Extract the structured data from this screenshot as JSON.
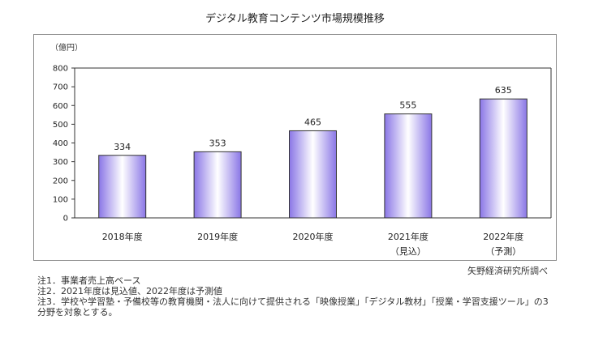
{
  "chart_data": {
    "type": "bar",
    "title": "デジタル教育コンテンツ市場規模推移",
    "unit_label": "（億円）",
    "categories": [
      [
        "2018年度"
      ],
      [
        "2019年度"
      ],
      [
        "2020年度"
      ],
      [
        "2021年度",
        "（見込）"
      ],
      [
        "2022年度",
        "（予測）"
      ]
    ],
    "values": [
      334,
      353,
      465,
      555,
      635
    ],
    "ylim": [
      0,
      800
    ],
    "yticks": [
      0,
      100,
      200,
      300,
      400,
      500,
      600,
      700,
      800
    ],
    "grid": false,
    "bar_gradient": [
      "#8a76e6",
      "#ffffff",
      "#8a76e6"
    ],
    "bar_outline": "#333333"
  },
  "source": "矢野経済研究所調べ",
  "notes": [
    "注1．事業者売上高ベース",
    "注2．2021年度は見込値、2022年度は予測値",
    "注3．学校や学習塾・予備校等の教育機関・法人に向けて提供される「映像授業」「デジタル教材」「授業・学習支援ツール」の3分野を対象とする。"
  ]
}
